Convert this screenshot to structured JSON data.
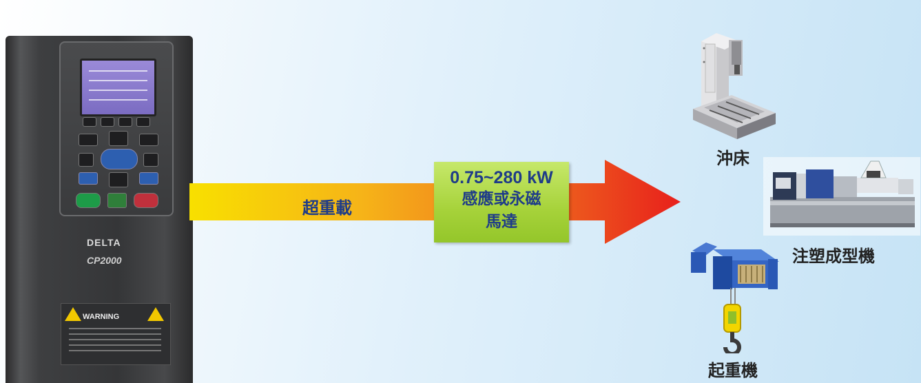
{
  "arrow": {
    "label": "超重載"
  },
  "spec_box": {
    "power_range": "0.75~280 kW",
    "motor_type": "感應或永磁",
    "motor_word": "馬達"
  },
  "drive": {
    "brand_logo": "DELTA",
    "model": "CP2000",
    "warning_label": "WARNING"
  },
  "applications": [
    {
      "label": "沖床",
      "icon": "machine-tool-icon"
    },
    {
      "label": "注塑成型機",
      "icon": "injection-molding-machine-icon"
    },
    {
      "label": "起重機",
      "icon": "crane-hoist-icon"
    }
  ],
  "colors": {
    "arrow_start": "#f8e000",
    "arrow_mid": "#f39a1e",
    "arrow_end": "#e8211c",
    "spec_box": "#a6d23a",
    "text_blue": "#1f3c88"
  }
}
